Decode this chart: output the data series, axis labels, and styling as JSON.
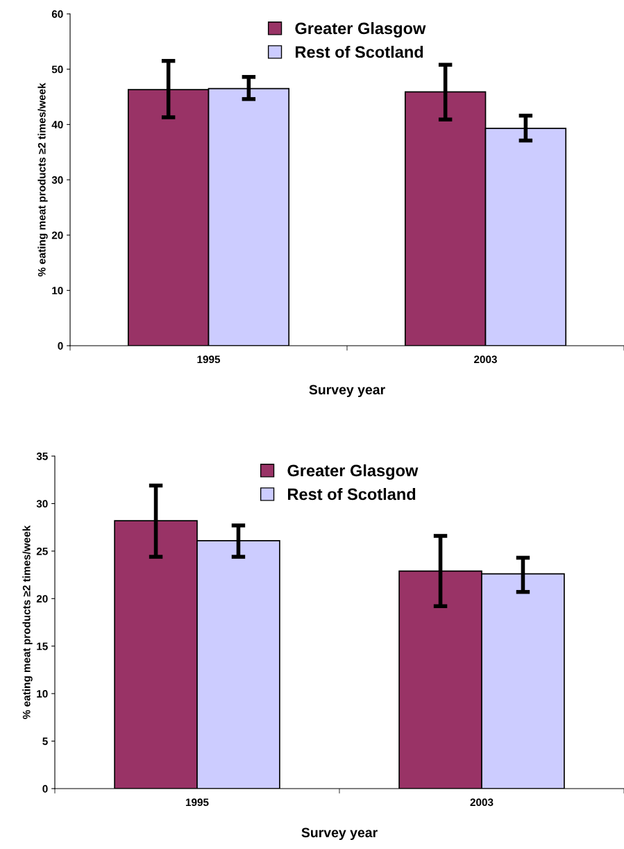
{
  "chart_data": [
    {
      "type": "bar",
      "categories": [
        "1995",
        "2003"
      ],
      "xlabel": "Survey year",
      "ylabel": "% eating meat products ≥2 times/week",
      "ylim": [
        0,
        60
      ],
      "yticks": [
        0,
        10,
        20,
        30,
        40,
        50,
        60
      ],
      "grid": false,
      "legend": "top",
      "series": [
        {
          "name": "Greater Glasgow",
          "color": "#993366",
          "values": [
            46.3,
            45.9
          ],
          "errors": [
            [
              41.3,
              51.5
            ],
            [
              40.9,
              50.8
            ]
          ]
        },
        {
          "name": "Rest of Scotland",
          "color": "#ccccff",
          "values": [
            46.5,
            39.3
          ],
          "errors": [
            [
              44.6,
              48.6
            ],
            [
              37.1,
              41.6
            ]
          ]
        }
      ]
    },
    {
      "type": "bar",
      "categories": [
        "1995",
        "2003"
      ],
      "xlabel": "Survey year",
      "ylabel": "% eating meat products ≥2 times/week",
      "ylim": [
        0,
        35
      ],
      "yticks": [
        0,
        5,
        10,
        15,
        20,
        25,
        30,
        35
      ],
      "grid": false,
      "legend": "top",
      "series": [
        {
          "name": "Greater Glasgow",
          "color": "#993366",
          "values": [
            28.2,
            22.9
          ],
          "errors": [
            [
              24.4,
              31.9
            ],
            [
              19.2,
              26.6
            ]
          ]
        },
        {
          "name": "Rest of Scotland",
          "color": "#ccccff",
          "values": [
            26.1,
            22.6
          ],
          "errors": [
            [
              24.4,
              27.7
            ],
            [
              20.7,
              24.3
            ]
          ]
        }
      ]
    }
  ]
}
